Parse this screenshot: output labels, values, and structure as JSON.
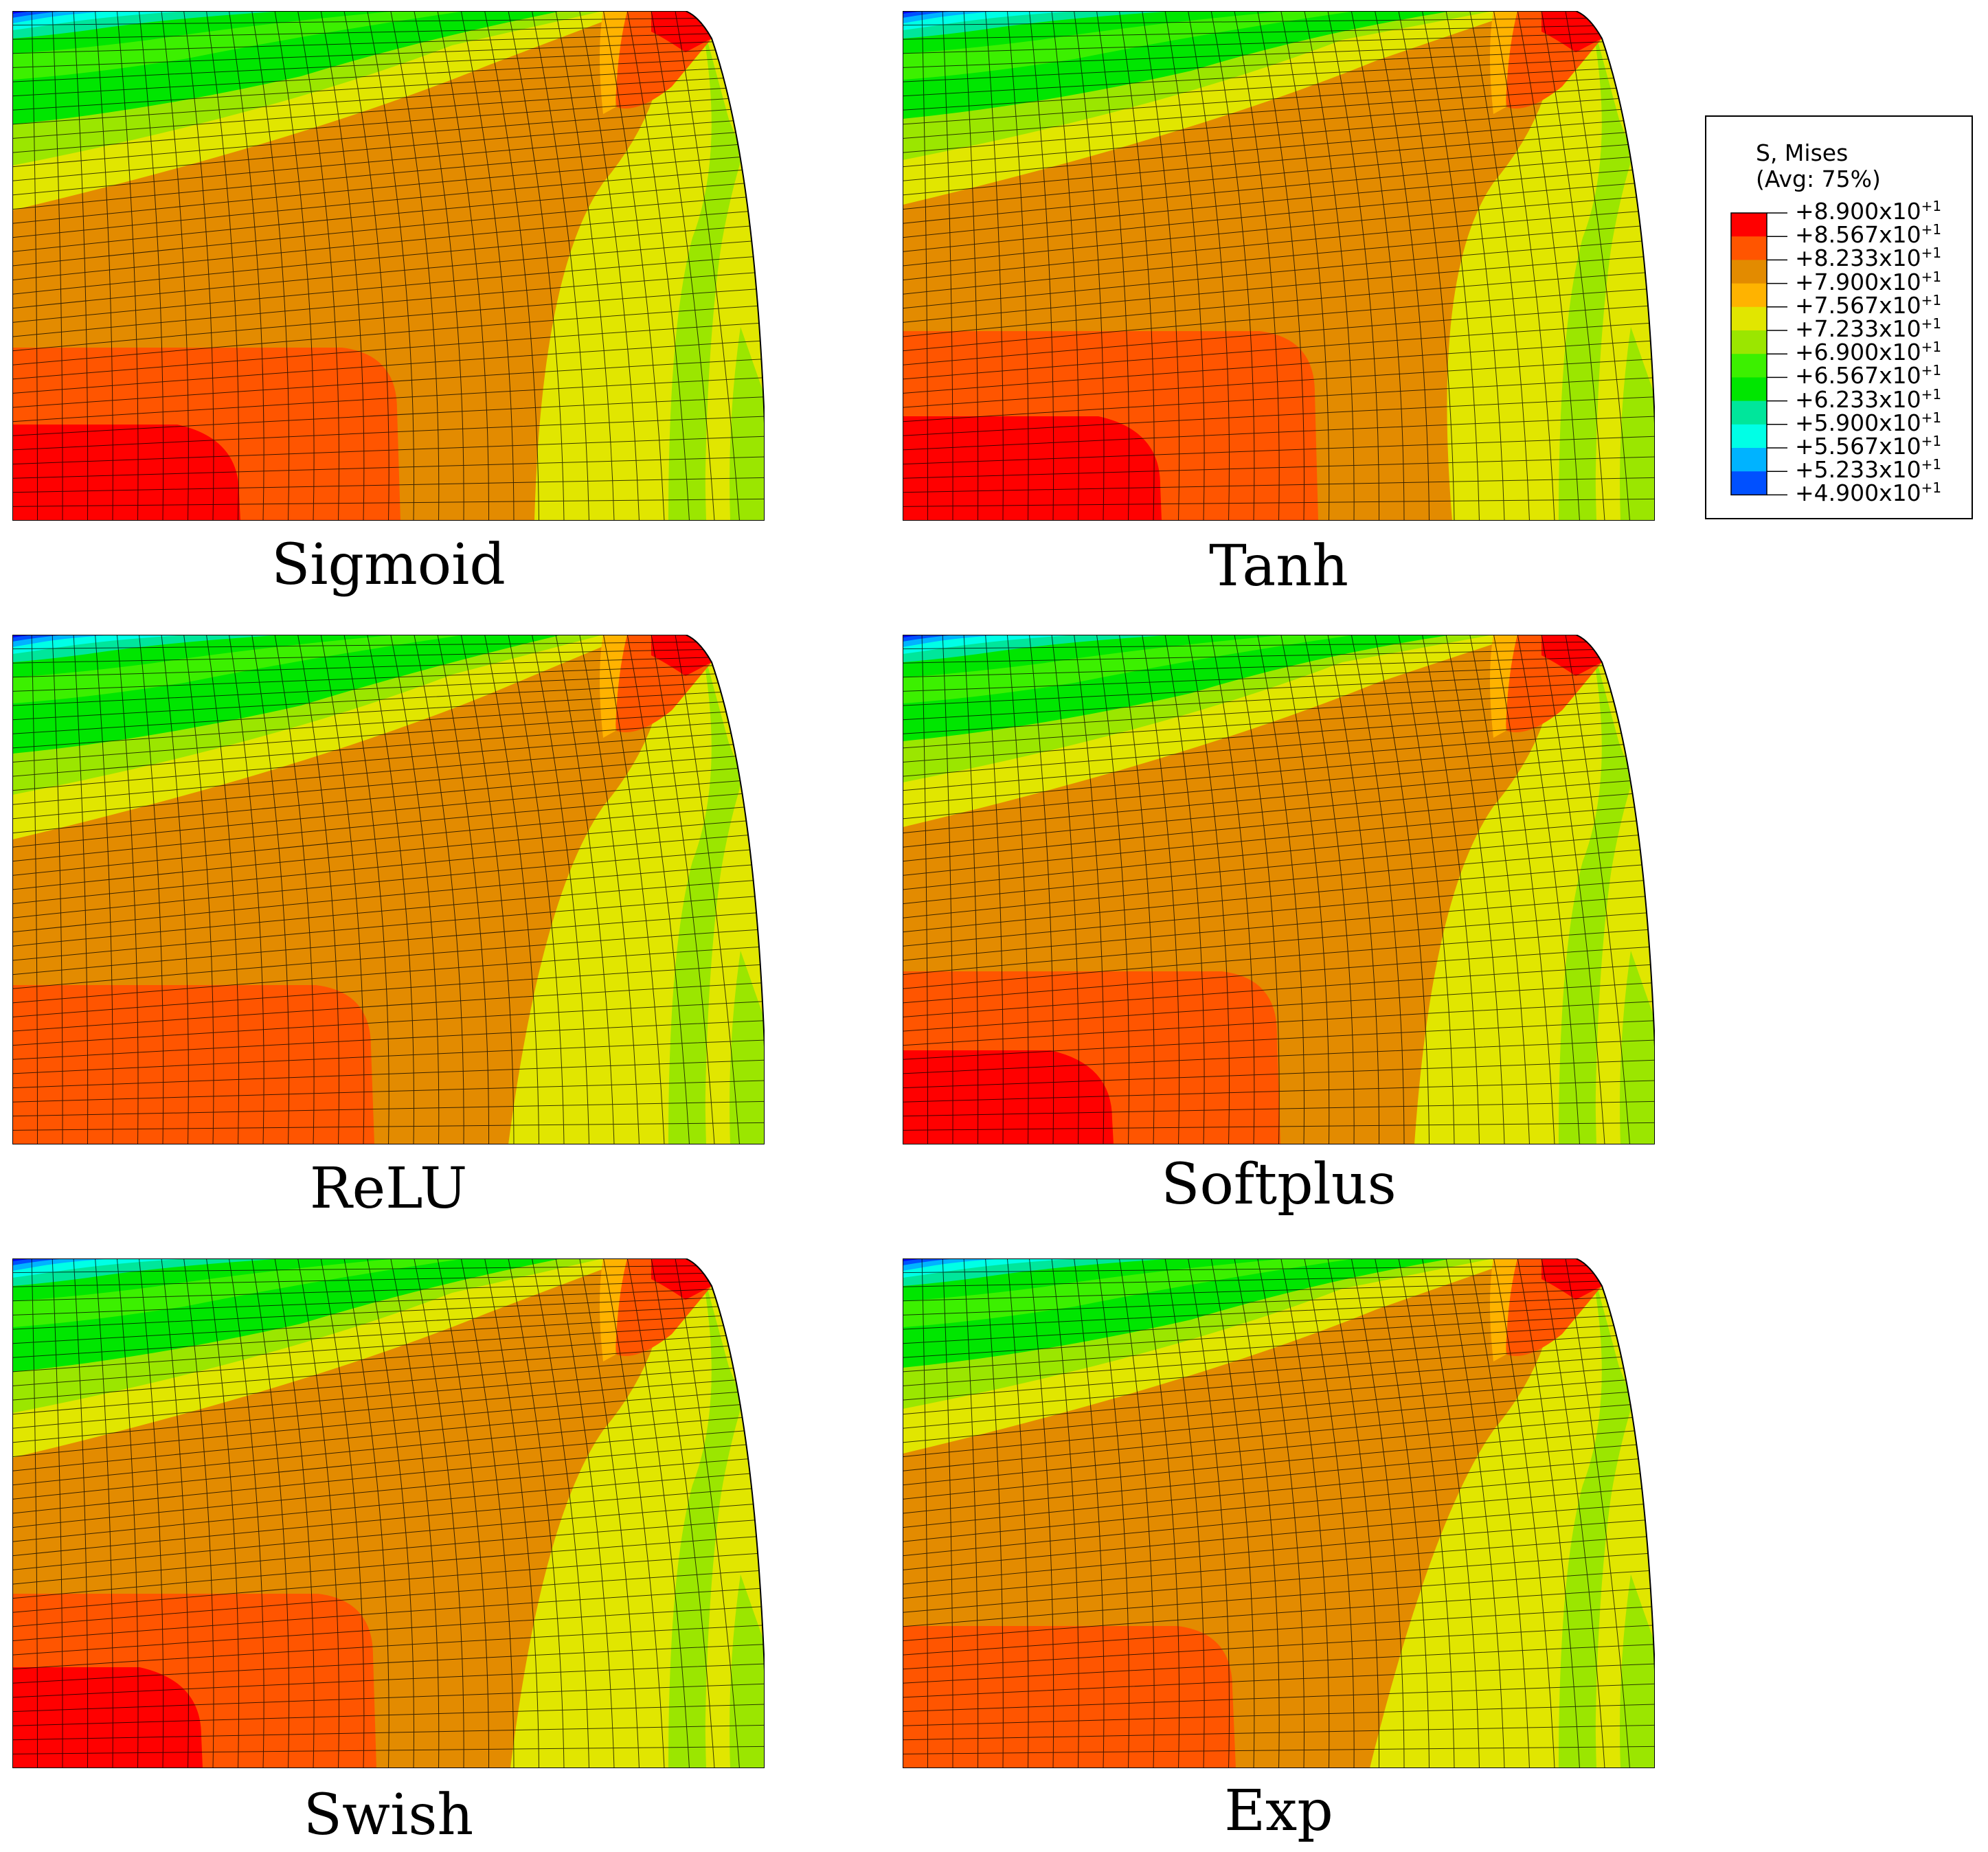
{
  "legend": {
    "title_line1": "S, Mises",
    "title_line2": "(Avg: 75%)",
    "levels": [
      {
        "mantissa": "+8.900x10",
        "exp": "+1",
        "color": "#ff0000"
      },
      {
        "mantissa": "+8.567x10",
        "exp": "+1",
        "color": "#ff5500"
      },
      {
        "mantissa": "+8.233x10",
        "exp": "+1",
        "color": "#e38b00"
      },
      {
        "mantissa": "+7.900x10",
        "exp": "+1",
        "color": "#ffb300"
      },
      {
        "mantissa": "+7.567x10",
        "exp": "+1",
        "color": "#e1e600"
      },
      {
        "mantissa": "+7.233x10",
        "exp": "+1",
        "color": "#9be600"
      },
      {
        "mantissa": "+6.900x10",
        "exp": "+1",
        "color": "#3cf000"
      },
      {
        "mantissa": "+6.567x10",
        "exp": "+1",
        "color": "#00e600"
      },
      {
        "mantissa": "+6.233x10",
        "exp": "+1",
        "color": "#00e69b"
      },
      {
        "mantissa": "+5.900x10",
        "exp": "+1",
        "color": "#00ffe6"
      },
      {
        "mantissa": "+5.567x10",
        "exp": "+1",
        "color": "#00b3ff"
      },
      {
        "mantissa": "+5.233x10",
        "exp": "+1",
        "color": "#0050ff"
      },
      {
        "mantissa": "+4.900x10",
        "exp": "+1",
        "color": "#0000ff"
      }
    ]
  },
  "panels": [
    {
      "label": "Sigmoid"
    },
    {
      "label": "Tanh"
    },
    {
      "label": "ReLU"
    },
    {
      "label": "Softplus"
    },
    {
      "label": "Swish"
    },
    {
      "label": "Exp"
    }
  ]
}
